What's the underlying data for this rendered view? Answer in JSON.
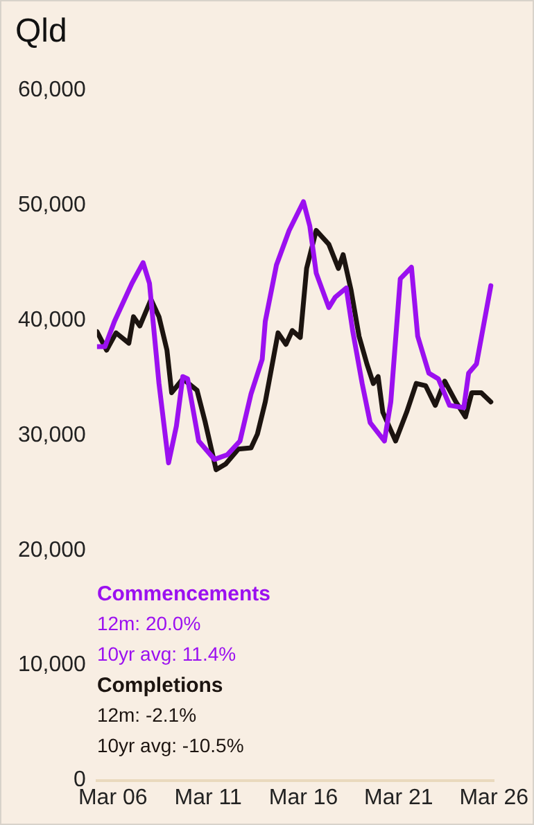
{
  "chart_data": {
    "type": "line",
    "title": "Qld",
    "xlim": [
      "2005-05",
      "2026-03"
    ],
    "xticks": [
      {
        "value": "2006-03",
        "label": "Mar 06"
      },
      {
        "value": "2011-03",
        "label": "Mar 11"
      },
      {
        "value": "2016-03",
        "label": "Mar 16"
      },
      {
        "value": "2021-03",
        "label": "Mar 21"
      },
      {
        "value": "2026-03",
        "label": "Mar 26"
      }
    ],
    "ylim": [
      0,
      60000
    ],
    "yticks": [
      {
        "value": 0,
        "label": "0"
      },
      {
        "value": 10000,
        "label": "10,000"
      },
      {
        "value": 20000,
        "label": "20,000"
      },
      {
        "value": 30000,
        "label": "30,000"
      },
      {
        "value": 40000,
        "label": "40,000"
      },
      {
        "value": 50000,
        "label": "50,000"
      },
      {
        "value": 60000,
        "label": "60,000"
      }
    ],
    "grid": false,
    "legend": false,
    "series": [
      {
        "name": "Commencements",
        "color": "#9b10f0",
        "x": [
          "2005-05",
          "2005-10",
          "2006-04",
          "2007-03",
          "2007-10",
          "2008-02",
          "2008-08",
          "2009-02",
          "2009-07",
          "2009-11",
          "2010-02",
          "2010-09",
          "2011-07",
          "2012-03",
          "2012-11",
          "2013-06",
          "2014-01",
          "2014-03",
          "2014-10",
          "2015-06",
          "2016-03",
          "2016-07",
          "2016-11",
          "2017-07",
          "2017-11",
          "2018-06",
          "2018-10",
          "2019-04",
          "2019-09",
          "2020-06",
          "2020-10",
          "2021-04",
          "2021-11",
          "2022-03",
          "2022-10",
          "2023-04",
          "2023-11",
          "2024-08",
          "2024-11",
          "2025-04",
          "2026-01"
        ],
        "values": [
          37700,
          37700,
          39900,
          43200,
          45000,
          43200,
          34500,
          27600,
          30800,
          35100,
          34900,
          29500,
          27900,
          28300,
          29500,
          33600,
          36600,
          39900,
          44800,
          47800,
          50300,
          48200,
          44100,
          41100,
          42000,
          42800,
          39100,
          34500,
          31100,
          29500,
          32900,
          43600,
          44600,
          38600,
          35400,
          34900,
          32600,
          32400,
          35400,
          36200,
          43000
        ]
      },
      {
        "name": "Completions",
        "color": "#1c1410",
        "x": [
          "2005-05",
          "2005-11",
          "2006-05",
          "2007-01",
          "2007-04",
          "2007-08",
          "2008-03",
          "2008-08",
          "2009-01",
          "2009-04",
          "2009-11",
          "2010-08",
          "2011-01",
          "2011-08",
          "2012-02",
          "2012-10",
          "2013-06",
          "2013-10",
          "2014-03",
          "2014-11",
          "2015-04",
          "2015-08",
          "2016-01",
          "2016-05",
          "2016-11",
          "2017-07",
          "2018-01",
          "2018-04",
          "2018-09",
          "2019-02",
          "2019-07",
          "2019-11",
          "2020-02",
          "2020-05",
          "2021-01",
          "2021-08",
          "2022-02",
          "2022-08",
          "2023-02",
          "2023-08",
          "2024-03",
          "2024-09",
          "2025-01",
          "2025-07",
          "2026-01"
        ],
        "values": [
          39000,
          37400,
          38900,
          38000,
          40300,
          39500,
          41800,
          40300,
          37400,
          33700,
          34900,
          33900,
          31200,
          27000,
          27500,
          28800,
          28900,
          30100,
          32900,
          38900,
          37900,
          39100,
          38500,
          44500,
          47800,
          46600,
          44500,
          45700,
          42600,
          38600,
          36200,
          34500,
          35100,
          32000,
          29500,
          32000,
          34500,
          34300,
          32600,
          34700,
          32900,
          31600,
          33700,
          33700,
          32900
        ]
      }
    ],
    "annotations": [
      "12m: 20.0%",
      "10yr avg: 11.4%",
      "12m: -2.1%",
      "10yr avg: -10.5%"
    ]
  }
}
